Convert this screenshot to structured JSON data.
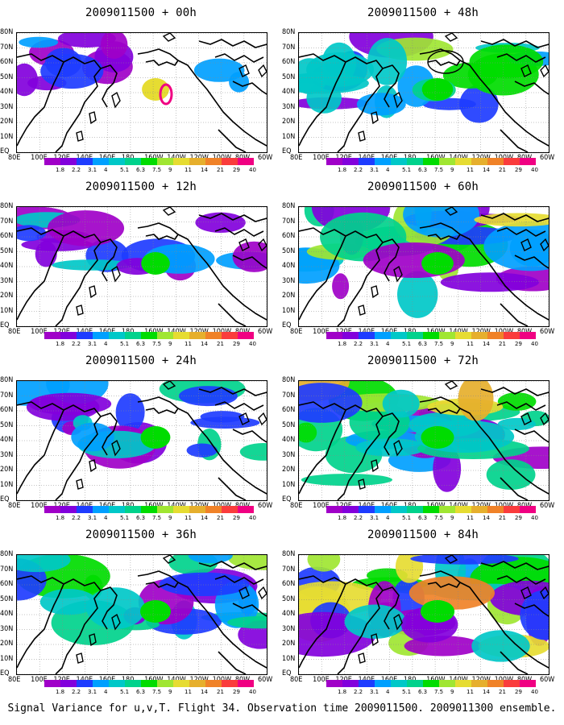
{
  "panels": [
    {
      "title": "2009011500 + 00h",
      "level": 0.15,
      "circle": true
    },
    {
      "title": "2009011500 + 48h",
      "level": 0.55,
      "circle": true
    },
    {
      "title": "2009011500 + 12h",
      "level": 0.3,
      "circle": false
    },
    {
      "title": "2009011500 + 60h",
      "level": 0.65,
      "circle": false
    },
    {
      "title": "2009011500 + 24h",
      "level": 0.4,
      "circle": false
    },
    {
      "title": "2009011500 + 72h",
      "level": 0.75,
      "circle": false
    },
    {
      "title": "2009011500 + 36h",
      "level": 0.5,
      "circle": false
    },
    {
      "title": "2009011500 + 84h",
      "level": 0.85,
      "circle": false
    }
  ],
  "lat_labels": [
    "80N",
    "70N",
    "60N",
    "50N",
    "40N",
    "30N",
    "20N",
    "10N",
    "EQ"
  ],
  "lon_labels": [
    "80E",
    "100E",
    "120E",
    "140E",
    "160E",
    "180",
    "160W",
    "140W",
    "120W",
    "100W",
    "80W",
    "60W"
  ],
  "colorbar": {
    "labels": [
      "1.8",
      "2.2",
      "3.1",
      "4",
      "5.1",
      "6.3",
      "7.5",
      "9",
      "11",
      "14",
      "21",
      "29",
      "40"
    ],
    "colors": [
      "#a000c8",
      "#8200dc",
      "#1e3cff",
      "#00a0ff",
      "#00c8c8",
      "#00d28c",
      "#00dc00",
      "#a0e632",
      "#e6dc32",
      "#e6af2d",
      "#f08228",
      "#fa3c3c",
      "#f00082"
    ]
  },
  "caption": "Signal Variance for u,v,T. Flight 34. Observation time 2009011500. 2009011300 ensemble."
}
